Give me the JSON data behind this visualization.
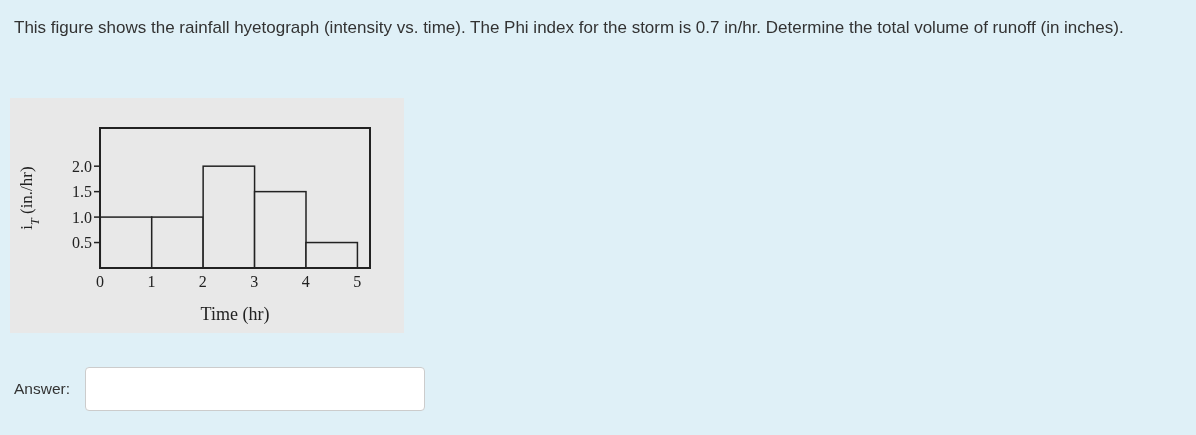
{
  "chart_data": {
    "type": "histogram",
    "title": "This figure shows the rainfall hyetograph (intensity vs. time). The Phi index for the storm is 0.7 in/hr. Determine the total volume of runoff (in inches).",
    "xlabel": "Time (hr)",
    "ylabel": "i$_{T}$ (in./hr)",
    "bins": [
      0,
      1,
      2,
      3,
      4,
      5
    ],
    "values": [
      1.0,
      1.0,
      2.0,
      1.5,
      0.5
    ],
    "color": "#e8e8e8",
    "xlim": [
      0,
      5.25
    ],
    "xticks": [
      0,
      1,
      2,
      3,
      4,
      5
    ],
    "ylim": [
      0,
      2.75
    ],
    "yticks": [
      0.5,
      {
        "value": 1,
        "label": "1.0"
      },
      1.5,
      {
        "value": 2,
        "label": "2.0"
      }
    ],
    "annotations": [
      "Answer:"
    ]
  }
}
